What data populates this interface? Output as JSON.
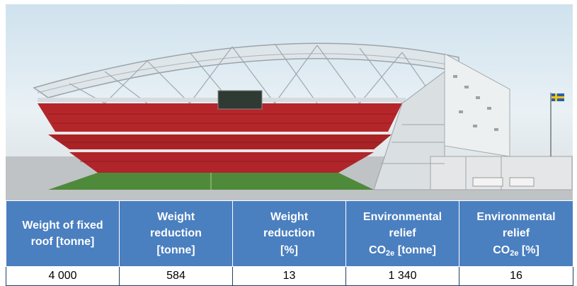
{
  "image": {
    "subject": "Cutaway rendering of a stadium with a fixed steel truss roof"
  },
  "table": {
    "headers": [
      {
        "lines": [
          "Weight of fixed",
          "roof [tonne]"
        ]
      },
      {
        "lines": [
          "Weight",
          "reduction",
          "[tonne]"
        ]
      },
      {
        "lines": [
          "Weight",
          "reduction",
          "[%]"
        ]
      },
      {
        "lines": [
          "Environmental",
          "relief"
        ],
        "co2_prefix": "CO",
        "co2_sub": "2e",
        "co2_unit": " [tonne]"
      },
      {
        "lines": [
          "Environmental",
          "relief"
        ],
        "co2_prefix": "CO",
        "co2_sub": "2e",
        "co2_unit": " [%]"
      }
    ],
    "row": [
      "4 000",
      "584",
      "13",
      "1 340",
      "16"
    ]
  },
  "colors": {
    "header_bg": "#4a7fc0",
    "header_text": "#ffffff",
    "seat_red": "#b5262a",
    "pitch_green": "#4f8a3a"
  }
}
